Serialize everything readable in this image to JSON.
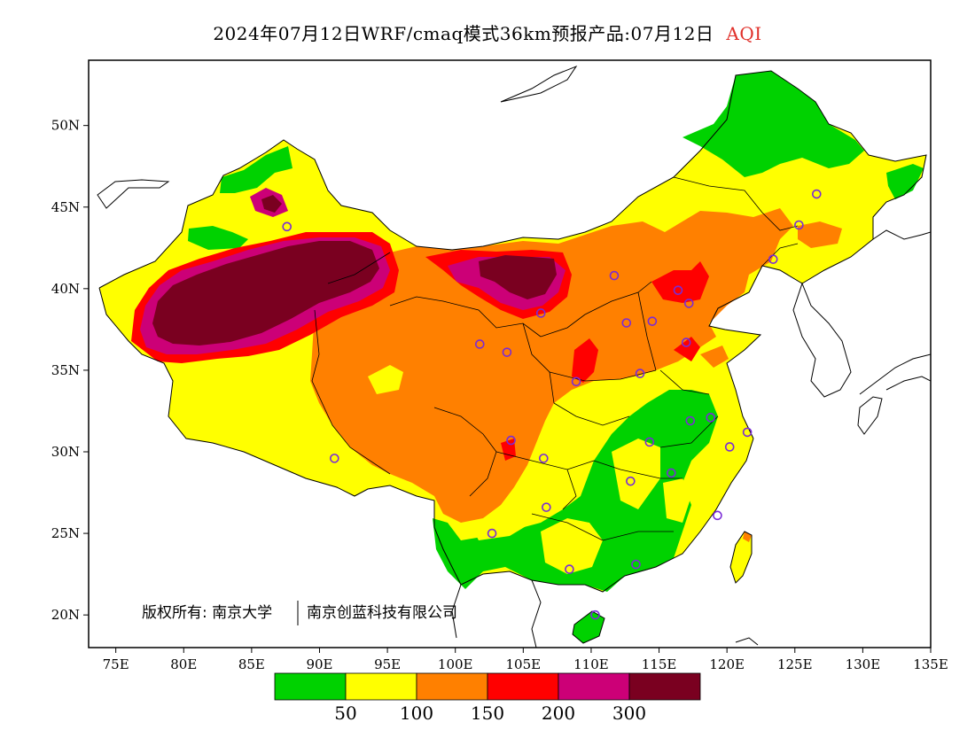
{
  "title": {
    "main": "2024年07月12日WRF/cmaq模式36km预报产品:07月12日",
    "variable": "AQI",
    "variable_color": "#e0302a"
  },
  "axes": {
    "lon_ticks": [
      "75E",
      "80E",
      "85E",
      "90E",
      "95E",
      "100E",
      "105E",
      "110E",
      "115E",
      "120E",
      "125E",
      "130E",
      "135E"
    ],
    "lat_ticks": [
      "20N",
      "25N",
      "30N",
      "35N",
      "40N",
      "45N",
      "50N"
    ],
    "lon_range": [
      73,
      135
    ],
    "lat_range": [
      18,
      54
    ]
  },
  "colorbar": {
    "colors": [
      "#00d200",
      "#ffff00",
      "#ff8000",
      "#ff0000",
      "#cc0077",
      "#7a0020"
    ],
    "labels": [
      "50",
      "100",
      "150",
      "200",
      "300"
    ]
  },
  "copyright": {
    "left": "版权所有: 南京大学",
    "right": "南京创蓝科技有限公司"
  },
  "sea_color": "#ffffff",
  "cities": [
    [
      87.6,
      43.8
    ],
    [
      91.1,
      29.6
    ],
    [
      101.8,
      36.6
    ],
    [
      103.8,
      36.1
    ],
    [
      106.3,
      38.5
    ],
    [
      104.1,
      30.7
    ],
    [
      106.5,
      29.6
    ],
    [
      106.7,
      26.6
    ],
    [
      102.7,
      25.0
    ],
    [
      108.4,
      22.8
    ],
    [
      110.3,
      20.0
    ],
    [
      113.3,
      23.1
    ],
    [
      112.9,
      28.2
    ],
    [
      114.3,
      30.6
    ],
    [
      115.9,
      28.7
    ],
    [
      117.3,
      31.9
    ],
    [
      118.8,
      32.1
    ],
    [
      121.5,
      31.2
    ],
    [
      120.2,
      30.3
    ],
    [
      119.3,
      26.1
    ],
    [
      113.6,
      34.8
    ],
    [
      117.0,
      36.7
    ],
    [
      114.5,
      38.0
    ],
    [
      112.6,
      37.9
    ],
    [
      111.7,
      40.8
    ],
    [
      116.4,
      39.9
    ],
    [
      117.2,
      39.1
    ],
    [
      123.4,
      41.8
    ],
    [
      125.3,
      43.9
    ],
    [
      126.6,
      45.8
    ],
    [
      108.9,
      34.3
    ]
  ]
}
